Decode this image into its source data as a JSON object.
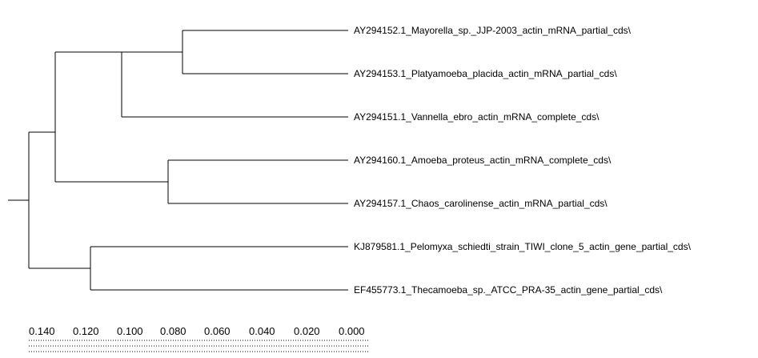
{
  "tree": {
    "leaves": [
      {
        "label": "AY294152.1_Mayorella_sp._JJP-2003_actin_mRNA_partial_cds\\"
      },
      {
        "label": "AY294153.1_Platyamoeba_placida_actin_mRNA_partial_cds\\"
      },
      {
        "label": "AY294151.1_Vannella_ebro_actin_mRNA_complete_cds\\"
      },
      {
        "label": "AY294160.1_Amoeba_proteus_actin_mRNA_complete_cds\\"
      },
      {
        "label": "AY294157.1_Chaos_carolinense_actin_mRNA_partial_cds\\"
      },
      {
        "label": "KJ879581.1_Pelomyxa_schiedti_strain_TIWI_clone_5_actin_gene_partial_cds\\"
      },
      {
        "label": "EF455773.1_Thecamoeba_sp._ATCC_PRA-35_actin_gene_partial_cds\\"
      }
    ]
  },
  "scale": {
    "ticks": [
      "0.140",
      "0.120",
      "0.100",
      "0.080",
      "0.060",
      "0.040",
      "0.020",
      "0.000"
    ]
  }
}
